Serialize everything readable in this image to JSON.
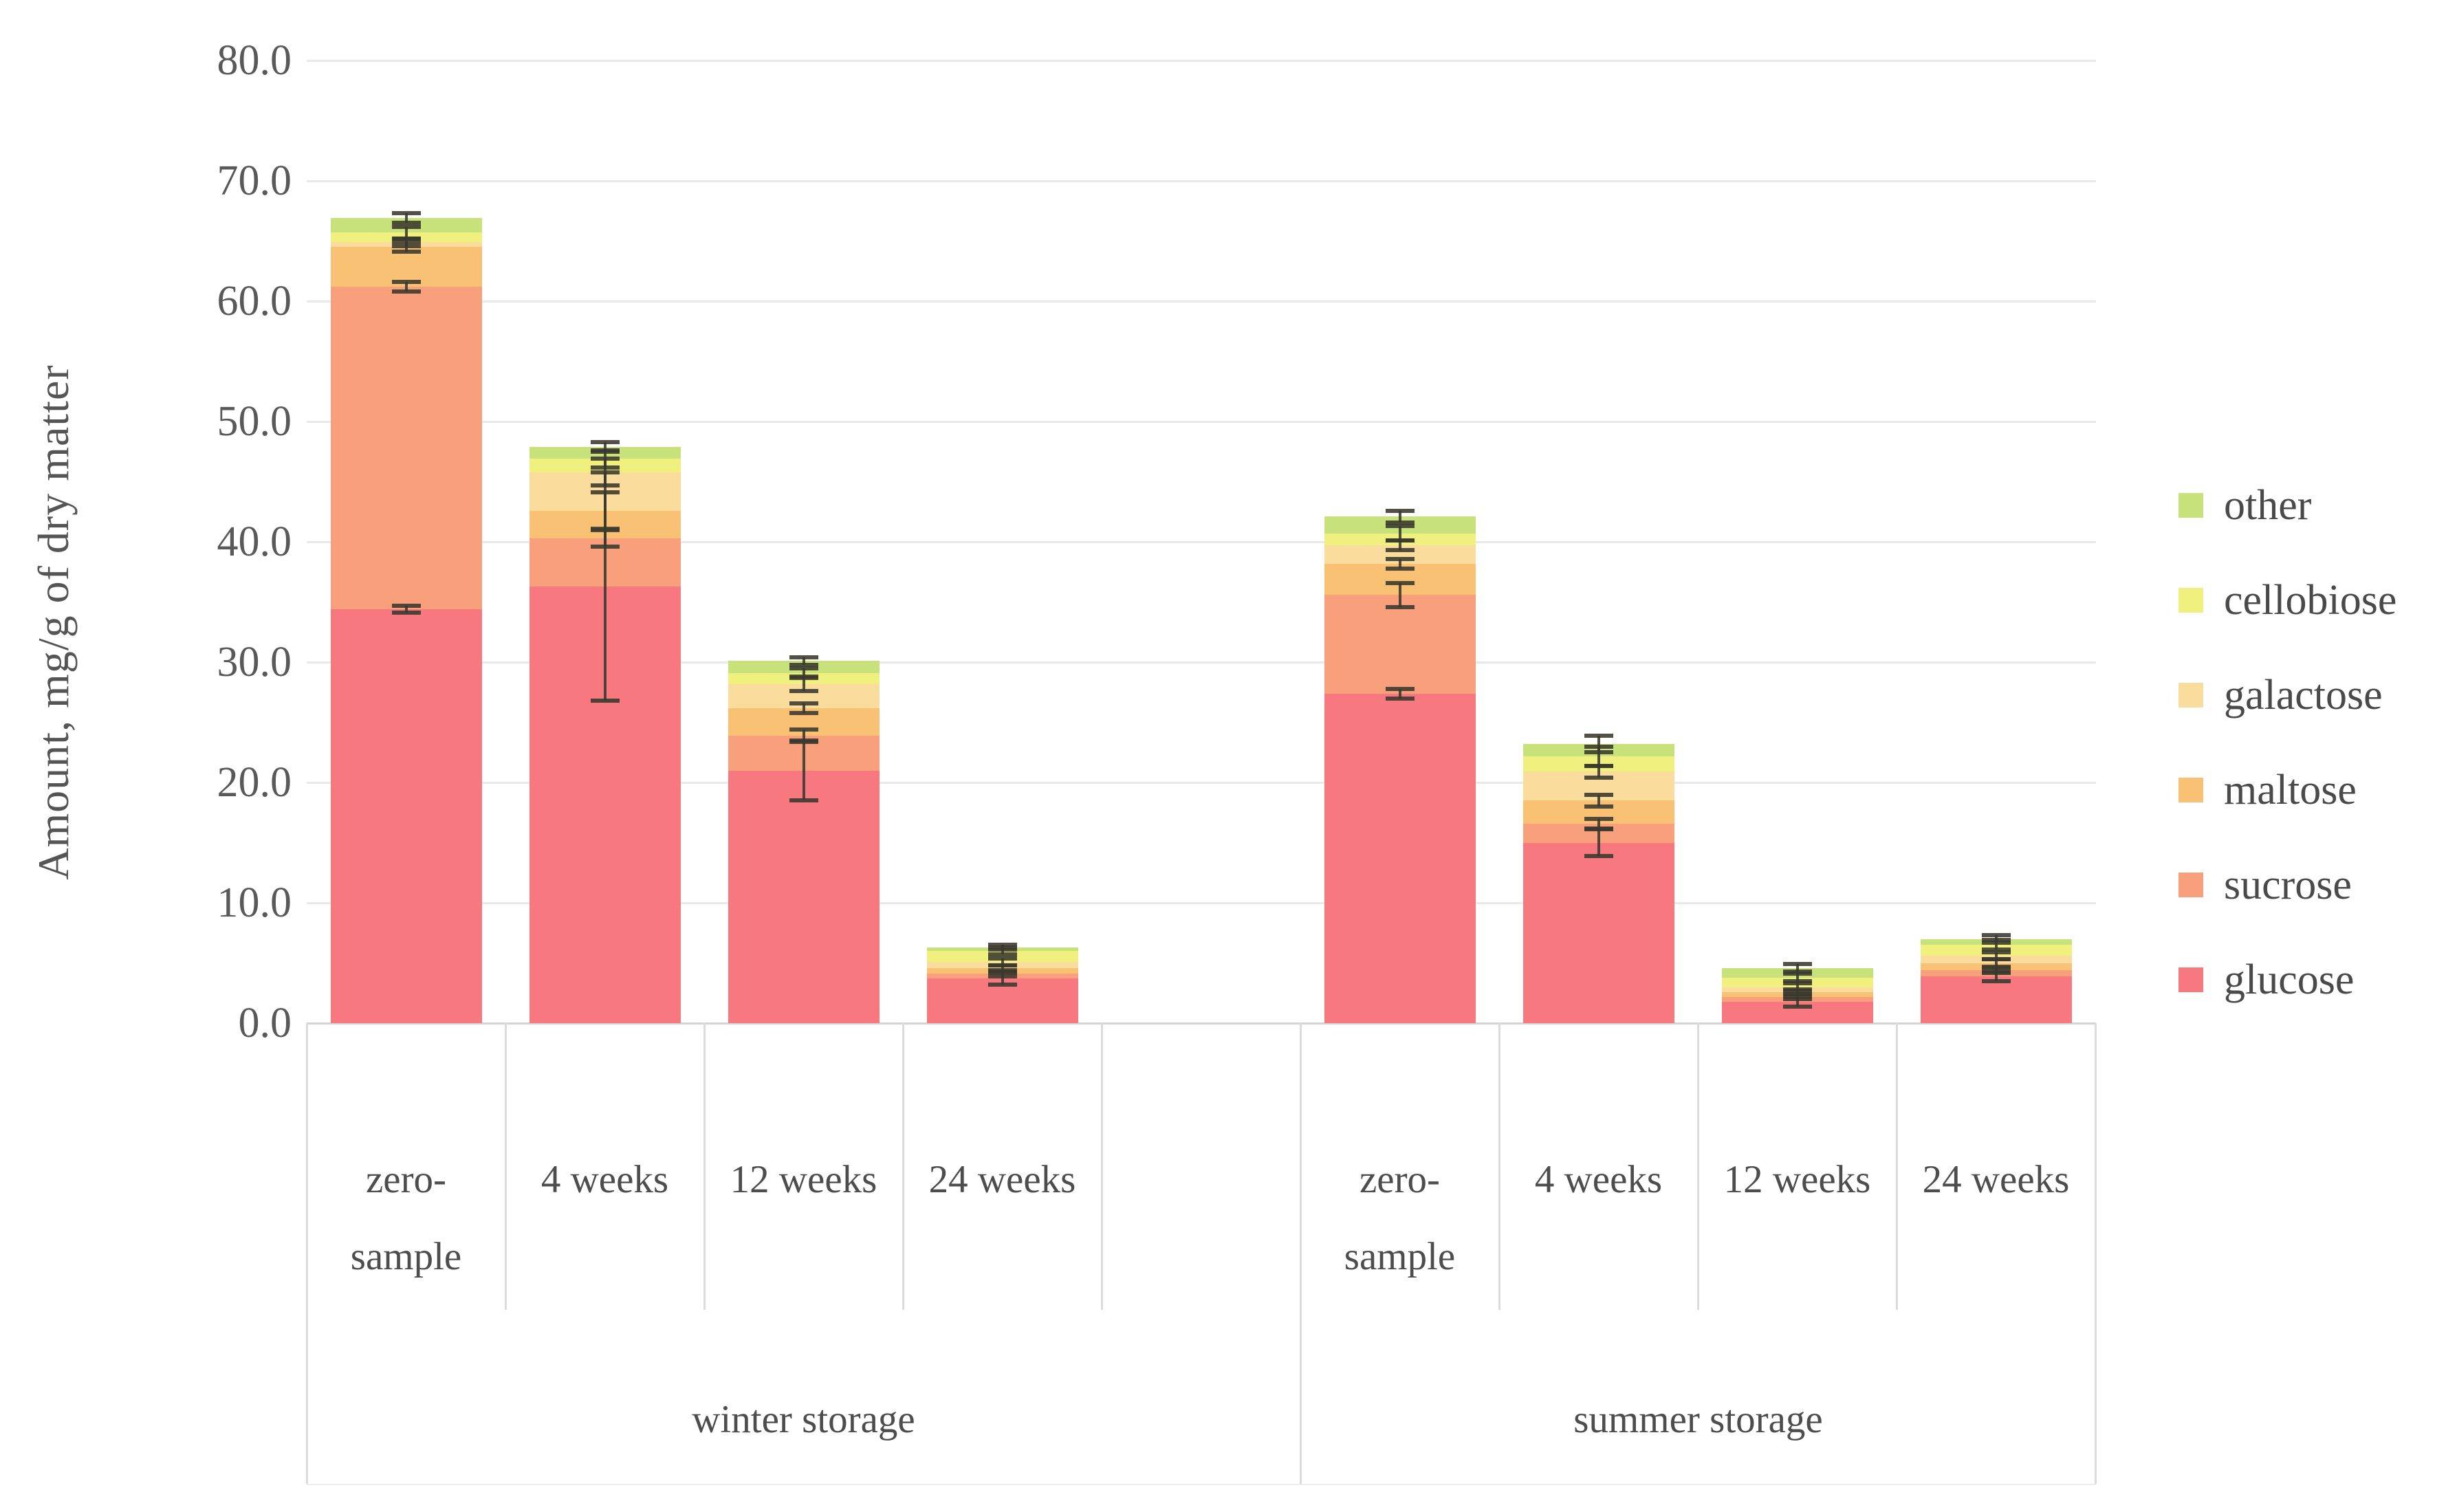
{
  "figure": {
    "background": "#ffffff",
    "y_axis_title": "Amount, mg/g of dry matter",
    "text_color": "#4d4d4d",
    "gridline_color": "#e9e9e9",
    "error_bar_color": "#3a382e"
  },
  "chart_data": {
    "type": "bar",
    "stacked": true,
    "title": "",
    "xlabel": "",
    "ylabel": "Amount, mg/g of dry matter",
    "ylim": [
      0,
      80
    ],
    "ytick_step": 10,
    "ytick_labels": [
      "0.0",
      "10.0",
      "20.0",
      "30.0",
      "40.0",
      "50.0",
      "60.0",
      "70.0",
      "80.0"
    ],
    "grid": true,
    "error_bars": true,
    "legend_position": "right-middle",
    "legend_top_to_bottom": [
      "other",
      "cellobiose",
      "galactose",
      "maltose",
      "sucrose",
      "glucose"
    ],
    "groups": [
      {
        "label": "winter storage",
        "categories": [
          "zero-sample",
          "4 weeks",
          "12 weeks",
          "24 weeks"
        ]
      },
      {
        "label": "summer storage",
        "categories": [
          "zero-sample",
          "4 weeks",
          "12 weeks",
          "24 weeks"
        ]
      }
    ],
    "categories": [
      "zero-sample",
      "4 weeks",
      "12 weeks",
      "24 weeks",
      "zero-sample",
      "4 weeks",
      "12 weeks",
      "24 weeks"
    ],
    "series": [
      {
        "name": "glucose",
        "color": "#f7797f",
        "values": [
          34.4,
          36.3,
          21.0,
          3.7,
          27.4,
          15.0,
          1.8,
          3.9
        ],
        "errors": [
          0.3,
          9.5,
          2.5,
          0.5,
          0.4,
          1.1,
          0.4,
          0.4
        ]
      },
      {
        "name": "sucrose",
        "color": "#f8a07b",
        "values": [
          26.8,
          4.0,
          2.9,
          0.4,
          8.2,
          1.6,
          0.4,
          0.5
        ],
        "errors": [
          0.4,
          0.7,
          0.5,
          0.2,
          1.0,
          0.4,
          0.2,
          0.2
        ]
      },
      {
        "name": "maltose",
        "color": "#f9c173",
        "values": [
          3.3,
          2.3,
          2.3,
          0.5,
          2.6,
          1.9,
          0.4,
          0.6
        ],
        "errors": [
          0.4,
          1.5,
          0.4,
          0.2,
          0.4,
          0.5,
          0.2,
          0.3
        ]
      },
      {
        "name": "galactose",
        "color": "#fadc9c",
        "values": [
          0.4,
          3.2,
          2.0,
          0.5,
          1.5,
          2.4,
          0.4,
          0.6
        ],
        "errors": [
          0.3,
          1.1,
          0.6,
          0.3,
          0.4,
          0.5,
          0.3,
          0.3
        ]
      },
      {
        "name": "cellobiose",
        "color": "#eff07d",
        "values": [
          0.8,
          1.1,
          0.9,
          0.9,
          1.0,
          1.3,
          0.8,
          0.9
        ],
        "errors": [
          0.5,
          0.7,
          0.4,
          0.3,
          0.6,
          0.8,
          0.3,
          0.4
        ]
      },
      {
        "name": "other",
        "color": "#c8e27b",
        "values": [
          1.2,
          1.0,
          1.0,
          0.3,
          1.4,
          1.0,
          0.8,
          0.5
        ],
        "errors": [
          0.4,
          0.4,
          0.3,
          0.2,
          0.5,
          0.7,
          0.3,
          0.3
        ]
      }
    ],
    "totals": [
      66.9,
      47.9,
      30.1,
      6.3,
      42.1,
      23.2,
      4.6,
      7.0
    ]
  }
}
